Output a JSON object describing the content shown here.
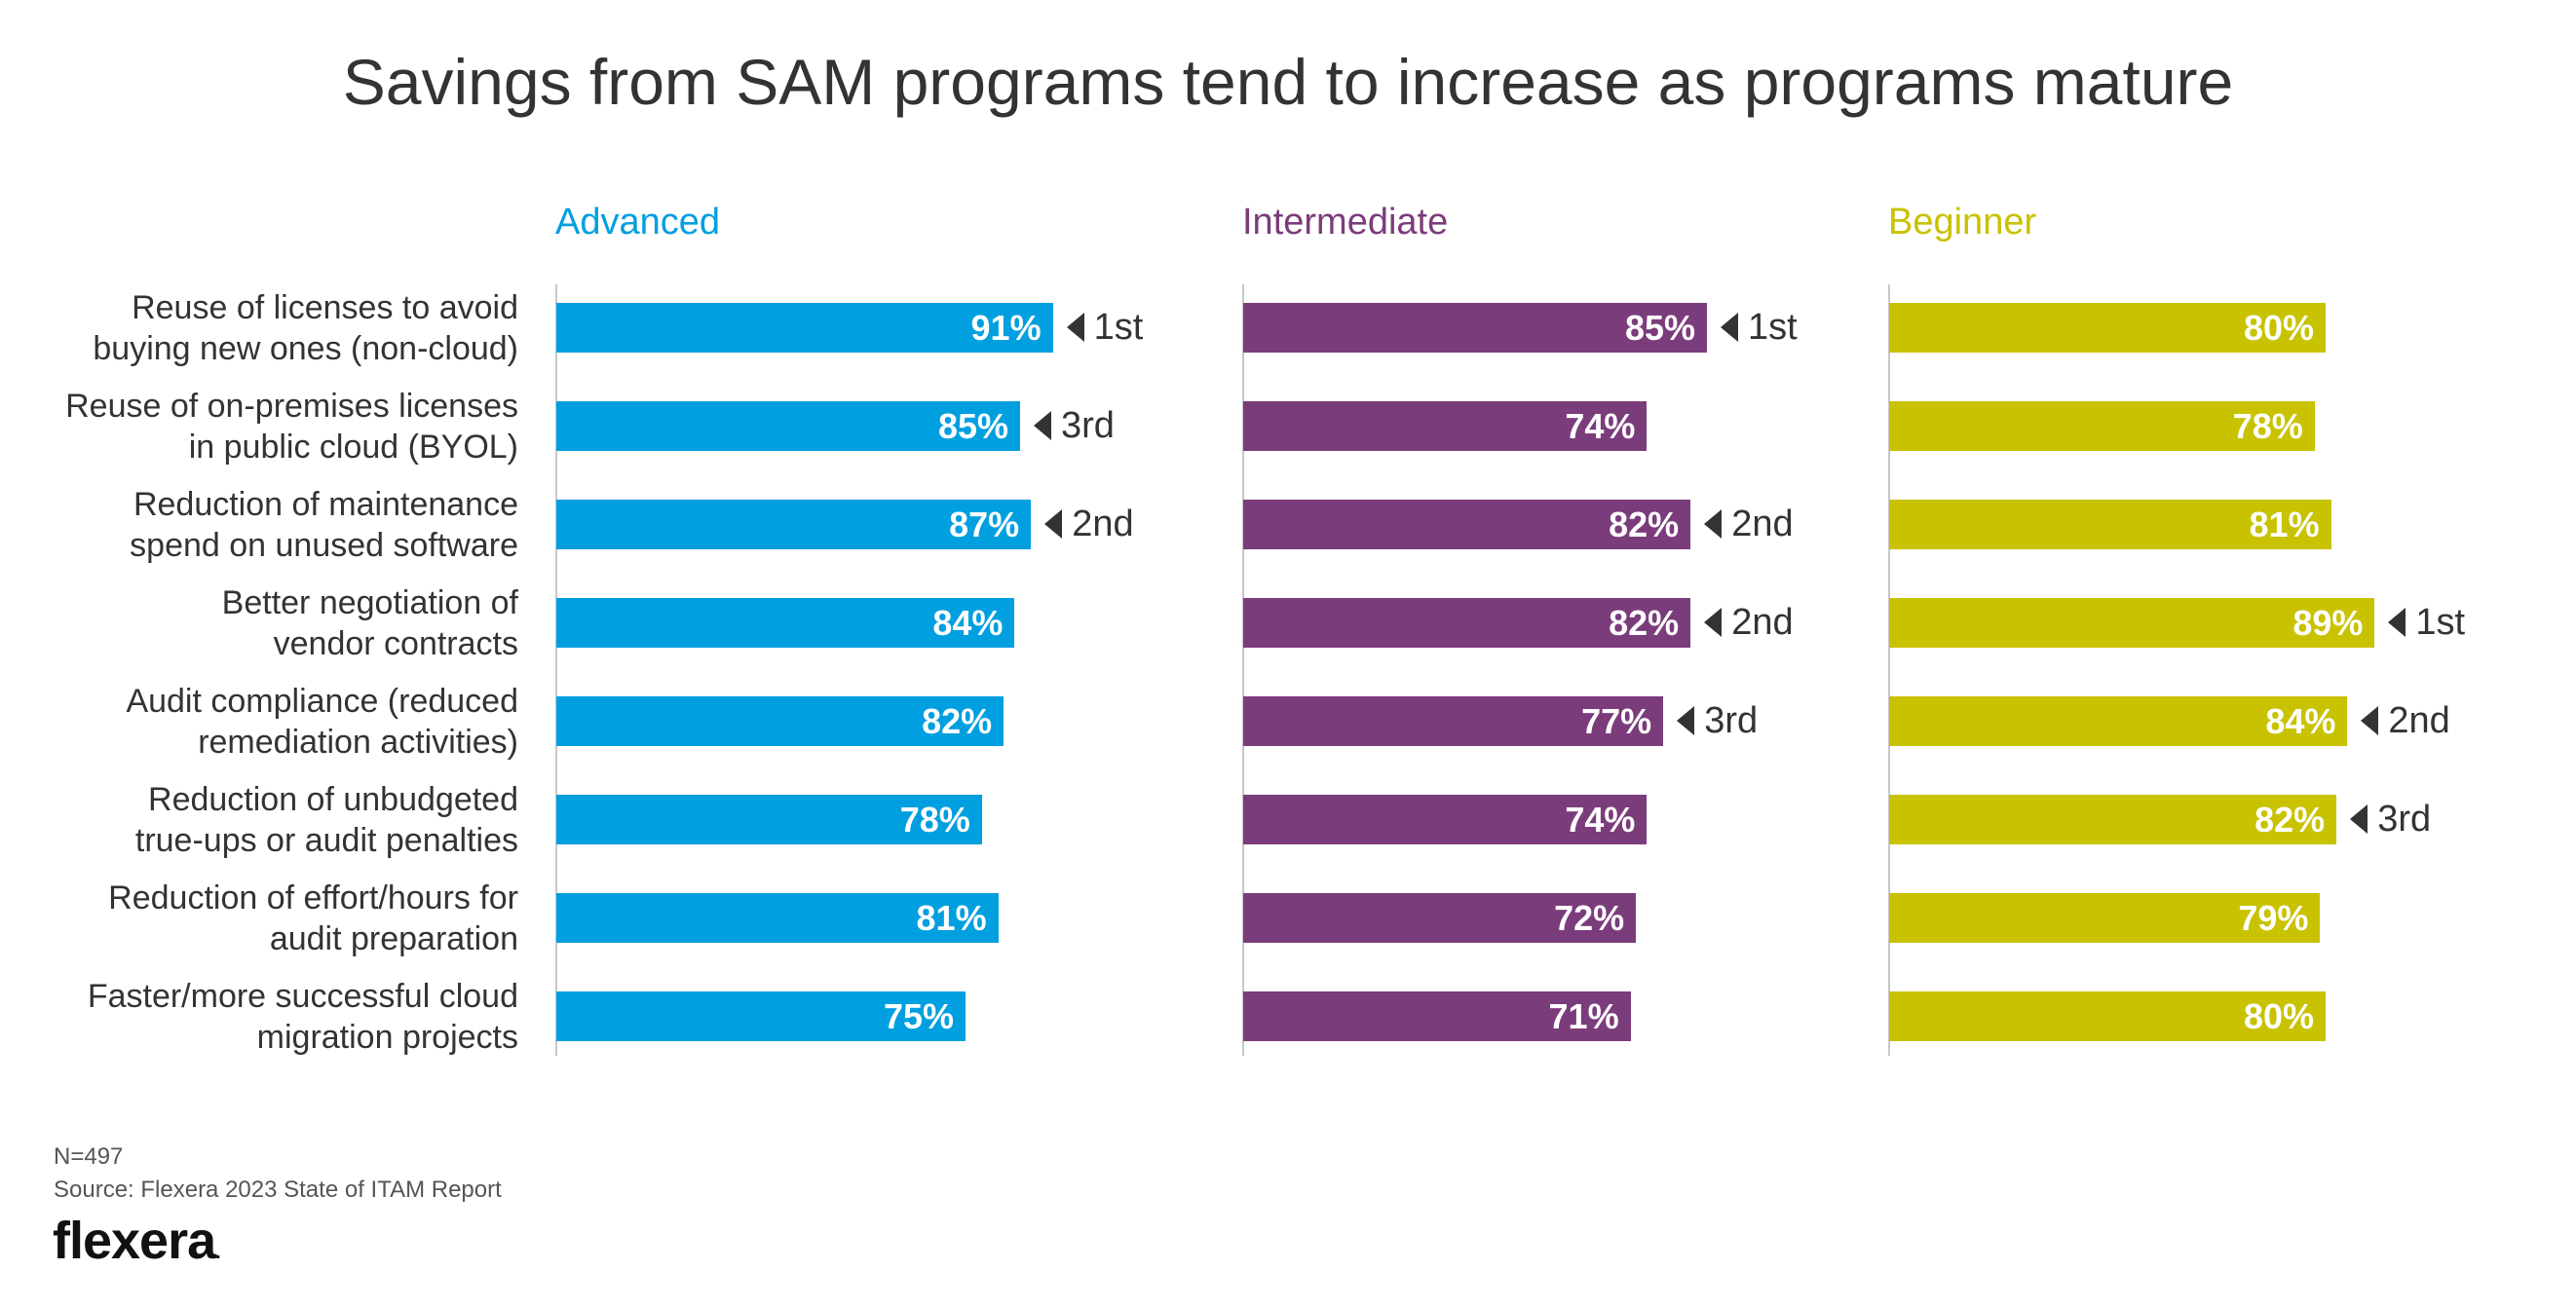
{
  "chart_data": {
    "type": "bar",
    "orientation": "horizontal",
    "title": "Savings from SAM programs tend to increase as programs mature",
    "categories": [
      [
        "Reuse of licenses to avoid",
        "buying new ones (non-cloud)"
      ],
      [
        "Reuse of on-premises licenses",
        "in public cloud (BYOL)"
      ],
      [
        "Reduction of maintenance",
        "spend on unused software"
      ],
      [
        "Better negotiation of",
        "vendor contracts"
      ],
      [
        "Audit compliance (reduced",
        "remediation activities)"
      ],
      [
        "Reduction of unbudgeted",
        "true-ups or audit penalties"
      ],
      [
        "Reduction of effort/hours for",
        "audit preparation"
      ],
      [
        "Faster/more successful cloud",
        "migration projects"
      ]
    ],
    "series": [
      {
        "name": "Advanced",
        "color": "#009fdf",
        "values": [
          91,
          85,
          87,
          84,
          82,
          78,
          81,
          75
        ],
        "labels": [
          "91%",
          "85%",
          "87%",
          "84%",
          "82%",
          "78%",
          "81%",
          "75%"
        ],
        "ranks": [
          "1st",
          "3rd",
          "2nd",
          "",
          "",
          "",
          "",
          ""
        ]
      },
      {
        "name": "Intermediate",
        "color": "#7b3c7b",
        "values": [
          85,
          74,
          82,
          82,
          77,
          74,
          72,
          71
        ],
        "labels": [
          "85%",
          "74%",
          "82%",
          "82%",
          "77%",
          "74%",
          "72%",
          "71%"
        ],
        "ranks": [
          "1st",
          "",
          "2nd",
          "2nd",
          "3rd",
          "",
          "",
          ""
        ]
      },
      {
        "name": "Beginner",
        "color": "#c8c200",
        "values": [
          80,
          78,
          81,
          89,
          84,
          82,
          79,
          80
        ],
        "labels": [
          "80%",
          "78%",
          "81%",
          "89%",
          "84%",
          "82%",
          "79%",
          "80%"
        ],
        "ranks": [
          "",
          "",
          "",
          "1st",
          "2nd",
          "3rd",
          "",
          ""
        ]
      }
    ],
    "xlim": [
      0,
      100
    ],
    "grid": false
  },
  "footer": {
    "n": "N=497",
    "source": "Source: Flexera 2023 State of ITAM Report"
  },
  "logo": {
    "text": "flexera",
    "mark": "."
  }
}
